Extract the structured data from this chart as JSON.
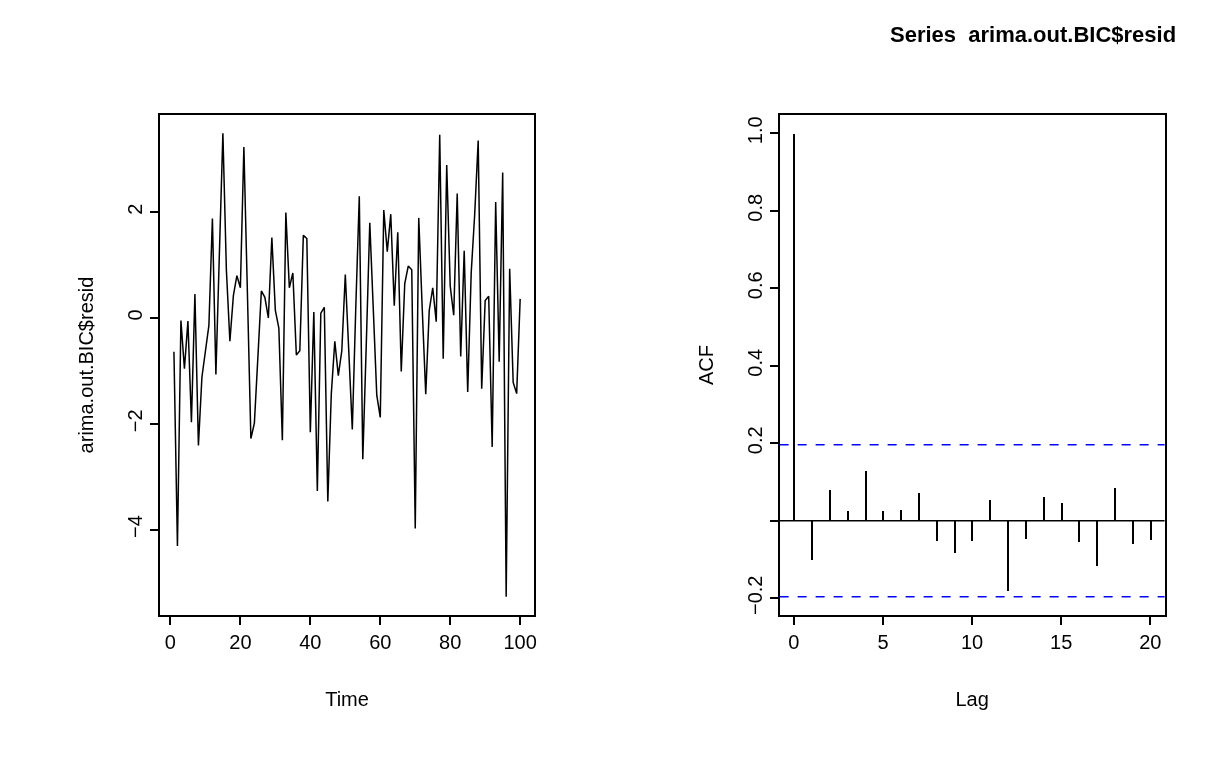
{
  "chart_data": [
    {
      "type": "line",
      "xlabel": "Time",
      "ylabel": "arima.out.BIC$resid",
      "color": "#000000",
      "line_style": "solid",
      "x": [
        1,
        2,
        3,
        4,
        5,
        6,
        7,
        8,
        9,
        10,
        11,
        12,
        13,
        14,
        15,
        16,
        17,
        18,
        19,
        20,
        21,
        22,
        23,
        24,
        25,
        26,
        27,
        28,
        29,
        30,
        31,
        32,
        33,
        34,
        35,
        36,
        37,
        38,
        39,
        40,
        41,
        42,
        43,
        44,
        45,
        46,
        47,
        48,
        49,
        50,
        51,
        52,
        53,
        54,
        55,
        56,
        57,
        58,
        59,
        60,
        61,
        62,
        63,
        64,
        65,
        66,
        67,
        68,
        69,
        70,
        71,
        72,
        73,
        74,
        75,
        76,
        77,
        78,
        79,
        80,
        81,
        82,
        83,
        84,
        85,
        86,
        87,
        88,
        89,
        90,
        91,
        92,
        93,
        94,
        95,
        96,
        97,
        98,
        99,
        100
      ],
      "values": [
        -0.64,
        -4.31,
        -0.05,
        -0.96,
        -0.06,
        -1.97,
        0.45,
        -2.41,
        -1.12,
        -0.63,
        -0.14,
        1.88,
        -1.07,
        1.22,
        3.49,
        0.9,
        -0.44,
        0.42,
        0.8,
        0.57,
        3.23,
        0.5,
        -2.28,
        -1.99,
        -0.75,
        0.51,
        0.39,
        0.0,
        1.52,
        0.14,
        -0.19,
        -2.31,
        1.99,
        0.57,
        0.85,
        -0.7,
        -0.62,
        1.56,
        1.5,
        -2.16,
        0.11,
        -3.27,
        0.09,
        0.2,
        -3.47,
        -1.43,
        -0.44,
        -1.09,
        -0.62,
        0.82,
        -0.63,
        -2.11,
        0.2,
        2.3,
        -2.67,
        -0.5,
        1.8,
        0.17,
        -1.46,
        -1.88,
        2.04,
        1.25,
        1.96,
        0.23,
        1.62,
        -1.01,
        0.65,
        0.98,
        0.91,
        -3.98,
        1.89,
        0.17,
        -1.44,
        0.14,
        0.57,
        -0.07,
        3.46,
        -0.77,
        2.89,
        0.6,
        0.05,
        2.35,
        -0.73,
        1.27,
        -1.4,
        0.85,
        1.96,
        3.35,
        -1.34,
        0.33,
        0.41,
        -2.44,
        2.19,
        -0.83,
        2.75,
        -5.27,
        0.93,
        -1.22,
        -1.43,
        0.36
      ],
      "xlim": [
        -2.96,
        103.96
      ],
      "ylim": [
        -5.62,
        3.84
      ],
      "xticks": [
        0,
        20,
        40,
        60,
        80,
        100
      ],
      "yticks": [
        {
          "value": -4,
          "label": "−4"
        },
        {
          "value": -2,
          "label": "−2"
        },
        0,
        2
      ]
    },
    {
      "type": "bar",
      "title": "Series  arima.out.BIC$resid",
      "xlabel": "Lag",
      "ylabel": "ACF",
      "color": "#000000",
      "x": [
        0,
        1,
        2,
        3,
        4,
        5,
        6,
        7,
        8,
        9,
        10,
        11,
        12,
        13,
        14,
        15,
        16,
        17,
        18,
        19,
        20
      ],
      "values": [
        1.0,
        -0.101,
        0.079,
        0.025,
        0.13,
        0.027,
        0.028,
        0.072,
        -0.051,
        -0.083,
        -0.051,
        0.054,
        -0.181,
        -0.045,
        0.061,
        0.047,
        -0.053,
        -0.117,
        0.086,
        -0.06,
        -0.048
      ],
      "xlim": [
        -0.8,
        20.8
      ],
      "ylim": [
        -0.244,
        1.048
      ],
      "xticks": [
        0,
        5,
        10,
        15,
        20
      ],
      "yticks": [
        {
          "value": -0.2,
          "label": "−0.2"
        },
        {
          "value": 0,
          "label": null
        },
        0.2,
        0.4,
        0.6,
        0.8,
        {
          "value": 1.0,
          "label": "1.0"
        }
      ],
      "ref_lines": [
        {
          "axis": "y",
          "value": 0,
          "color": "#000000",
          "line_style": "solid"
        },
        {
          "axis": "y",
          "value": 0.196,
          "color": "#0000ff",
          "line_style": "dashed"
        },
        {
          "axis": "y",
          "value": -0.196,
          "color": "#0000ff",
          "line_style": "dashed"
        }
      ]
    }
  ]
}
